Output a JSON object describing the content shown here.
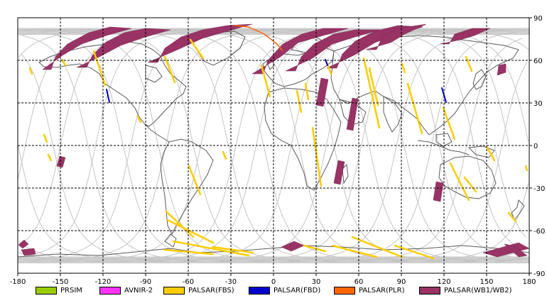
{
  "map": {
    "lon_ticks": [
      "-180",
      "-150",
      "-120",
      "-90",
      "-60",
      "-30",
      "0",
      "30",
      "60",
      "90",
      "120",
      "150",
      "180"
    ],
    "lat_ticks": [
      "90",
      "60",
      "30",
      "0",
      "-30",
      "-60",
      "-90"
    ],
    "colors": {
      "frame": "#000000",
      "grid": "#000000",
      "coast": "#5a5a5a",
      "orbit": "#c4c4c4",
      "fbs": "#ffcc00",
      "fbd": "#0000cc",
      "plr": "#ff6600",
      "wb": "#993366"
    }
  },
  "legend": {
    "items": [
      {
        "label": "PRSIM",
        "color": "#99cc00"
      },
      {
        "label": "AVNIR-2",
        "color": "#ff33ff"
      },
      {
        "label": "PALSAR(FBS)",
        "color": "#ffcc00"
      },
      {
        "label": "PALSAR(FBD)",
        "color": "#0000cc"
      },
      {
        "label": "PALSAR(PLR)",
        "color": "#ff6600"
      },
      {
        "label": "PALSAR(WB1/WB2)",
        "color": "#993366"
      }
    ]
  }
}
